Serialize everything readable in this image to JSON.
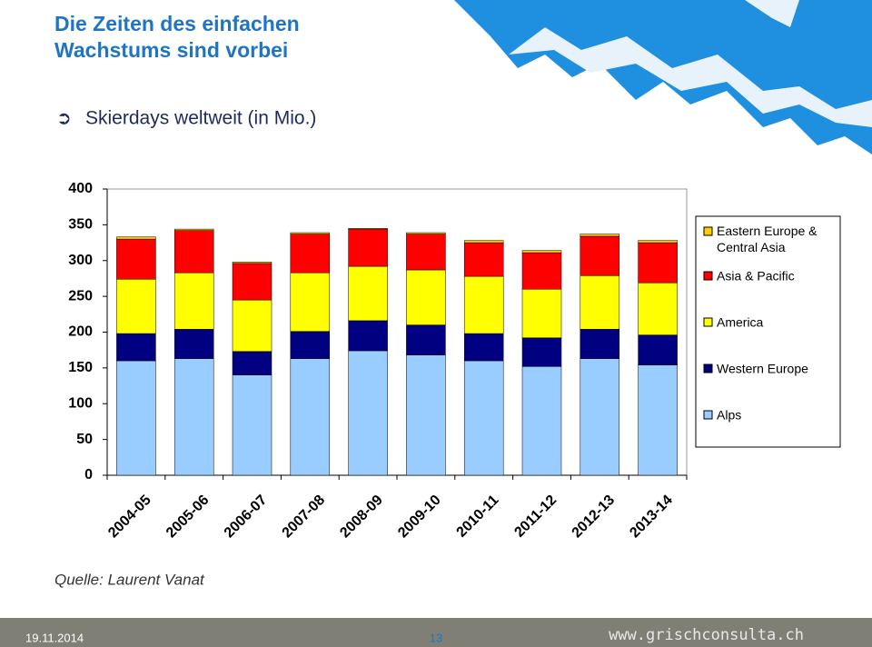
{
  "header": {
    "title_lines": [
      "Die Zeiten des einfachen",
      "Wachstums sind vorbei"
    ]
  },
  "chart_data": {
    "type": "stacked-bar",
    "title": "Skierdays weltweit (in Mio.)",
    "categories": [
      "2004-05",
      "2005-06",
      "2006-07",
      "2007-08",
      "2008-09",
      "2009-10",
      "2010-11",
      "2011-12",
      "2012-13",
      "2013-14"
    ],
    "series": [
      {
        "name": "Alps",
        "color": "#99ccff",
        "values": [
          160,
          163,
          140,
          163,
          174,
          168,
          160,
          152,
          163,
          154
        ]
      },
      {
        "name": "Western Europe",
        "color": "#000080",
        "values": [
          38,
          41,
          33,
          38,
          42,
          42,
          38,
          40,
          41,
          42
        ]
      },
      {
        "name": "America",
        "color": "#ffff00",
        "values": [
          76,
          79,
          72,
          82,
          76,
          77,
          80,
          68,
          75,
          73
        ]
      },
      {
        "name": "Asia & Pacific",
        "color": "#ff0000",
        "values": [
          56,
          59,
          51,
          54,
          52,
          50,
          47,
          51,
          55,
          56
        ]
      },
      {
        "name": "Eastern Europe & Central Asia",
        "color": "#ffcc00",
        "values": [
          3,
          2,
          2,
          2,
          1,
          2,
          3,
          3,
          3,
          3
        ]
      }
    ],
    "ylim": [
      0,
      400
    ],
    "yticks": [
      0,
      50,
      100,
      150,
      200,
      250,
      300,
      350,
      400
    ],
    "legend": "right"
  },
  "source": "Quelle: Laurent Vanat",
  "footer": {
    "date": "19.11.2014",
    "page": "13",
    "website": "www.grischconsulta.ch"
  }
}
